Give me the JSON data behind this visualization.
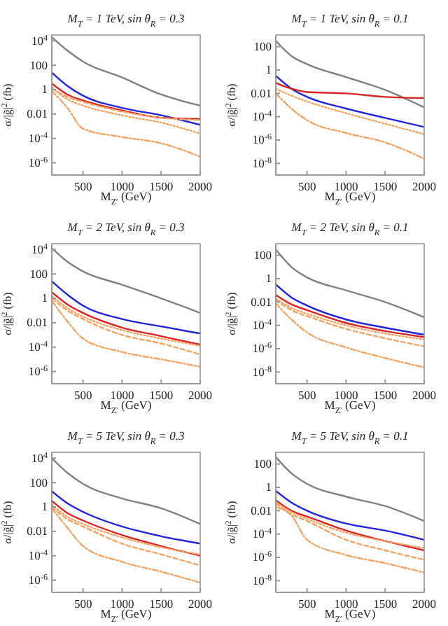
{
  "chart_data": [
    {
      "type": "line",
      "title": "M$_{T}$ = 1 TeV,  sin θ$_{R}$ = 0.3",
      "xlabel": "M$_{Z′}$ (GeV)",
      "ylabel": "σ/|g̃|$^{2}$ (fb)",
      "log": "y",
      "grid": false,
      "line_style": "solid",
      "x": [
        100,
        300,
        500,
        1000,
        1500,
        2000
      ],
      "xlim": [
        100,
        2000
      ],
      "xticks": [
        500,
        1000,
        1500,
        2000
      ],
      "ylim": [
        1e-07,
        30000
      ],
      "yticks": [
        {
          "value": 10000,
          "label": "10$^{4}$"
        },
        100,
        1,
        0.01,
        {
          "value": 0.0001,
          "label": "10$^{-4}$"
        },
        {
          "value": 1e-06,
          "label": "10$^{-6}$"
        }
      ],
      "series": [
        {
          "color": "#808080",
          "values": [
            20000,
            1600,
            200,
            10,
            0.4,
            0.05
          ]
        },
        {
          "color": "#2222dd",
          "values": [
            25,
            2,
            0.32,
            0.032,
            0.0079,
            0.0013
          ]
        },
        {
          "color": "#dd2222",
          "values": [
            3.2,
            0.4,
            0.13,
            0.02,
            0.005,
            0.004
          ]
        },
        {
          "color": "#f4a460",
          "line_style": "dotted",
          "values": [
            1.6,
            0.16,
            0.05,
            0.0079,
            0.002,
            0.00025
          ]
        },
        {
          "color": "#f4a460",
          "line_style": "dashed",
          "values": [
            1.3,
            0.25,
            0.1,
            0.016,
            0.005,
            0.0032
          ]
        },
        {
          "color": "#f4a460",
          "line_style": "dashdot",
          "values": [
            0.8,
            0.032,
            0.00063,
            0.00013,
            4e-05,
            3.2e-06
          ]
        }
      ]
    },
    {
      "type": "line",
      "title": "M$_{T}$ = 1 TeV,  sin θ$_{R}$ = 0.1",
      "xlabel": "M$_{Z′}$ (GeV)",
      "ylabel": "σ/|g̃|$^{2}$ (fb)",
      "log": "y",
      "grid": false,
      "line_style": "solid",
      "x": [
        100,
        300,
        500,
        1000,
        1500,
        2000
      ],
      "xlim": [
        100,
        2000
      ],
      "xticks": [
        500,
        1000,
        1500,
        2000
      ],
      "ylim": [
        1e-09,
        1000
      ],
      "yticks": [
        100,
        1,
        0.01,
        {
          "value": 0.0001,
          "label": "10$^{-4}$"
        },
        {
          "value": 1e-06,
          "label": "10$^{-6}$"
        },
        {
          "value": 1e-08,
          "label": "10$^{-8}$"
        }
      ],
      "series": [
        {
          "color": "#808080",
          "values": [
            316,
            16,
            3.2,
            0.25,
            0.02,
            0.00063
          ]
        },
        {
          "color": "#2222dd",
          "values": [
            0.32,
            0.025,
            0.005,
            0.0005,
            7.9e-05,
            1.3e-05
          ]
        },
        {
          "color": "#dd2222",
          "values": [
            0.079,
            0.025,
            0.013,
            0.01,
            0.005,
            0.004
          ]
        },
        {
          "color": "#f4a460",
          "line_style": "dotted",
          "values": [
            0.025,
            0.0063,
            0.002,
            0.0002,
            2.5e-05,
            3.2e-06
          ]
        },
        {
          "color": "#f4a460",
          "line_style": "dashdot",
          "values": [
            0.01,
            0.0005,
            5e-05,
            4e-06,
            6.3e-07,
            2.5e-08
          ]
        }
      ]
    },
    {
      "type": "line",
      "title": "M$_{T}$ = 2 TeV,  sin θ$_{R}$ = 0.3",
      "xlabel": "M$_{Z′}$ (GeV)",
      "ylabel": "σ/|g̃|$^{2}$ (fb)",
      "log": "y",
      "grid": false,
      "line_style": "solid",
      "x": [
        100,
        300,
        500,
        1000,
        1500,
        2000
      ],
      "xlim": [
        100,
        2000
      ],
      "xticks": [
        500,
        1000,
        1500,
        2000
      ],
      "ylim": [
        1e-07,
        30000
      ],
      "yticks": [
        {
          "value": 10000,
          "label": "10$^{4}$"
        },
        100,
        1,
        0.01,
        {
          "value": 0.0001,
          "label": "10$^{-4}$"
        },
        {
          "value": 1e-06,
          "label": "10$^{-6}$"
        }
      ],
      "series": [
        {
          "color": "#808080",
          "values": [
            13000,
            1000,
            160,
            13,
            1,
            0.063
          ]
        },
        {
          "color": "#2222dd",
          "values": [
            25,
            2,
            0.25,
            0.02,
            0.005,
            0.0013
          ]
        },
        {
          "color": "#dd2222",
          "values": [
            3.2,
            0.32,
            0.063,
            0.004,
            0.00079,
            0.00016
          ]
        },
        {
          "color": "#f4a460",
          "line_style": "dotted",
          "values": [
            1.6,
            0.16,
            0.032,
            0.0025,
            0.0005,
            0.00013
          ]
        },
        {
          "color": "#f4a460",
          "line_style": "dashed",
          "values": [
            1,
            0.1,
            0.02,
            0.001,
            0.0002,
            2.5e-05
          ]
        },
        {
          "color": "#f4a460",
          "line_style": "dashdot",
          "values": [
            0.63,
            0.013,
            0.0005,
            4e-05,
            1e-05,
            2.5e-06
          ]
        }
      ]
    },
    {
      "type": "line",
      "title": "M$_{T}$ = 2 TeV,  sin θ$_{R}$ = 0.1",
      "xlabel": "M$_{Z′}$ (GeV)",
      "ylabel": "σ/|g̃|$^{2}$ (fb)",
      "log": "y",
      "grid": false,
      "line_style": "solid",
      "x": [
        100,
        300,
        500,
        1000,
        1500,
        2000
      ],
      "xlim": [
        100,
        2000
      ],
      "xticks": [
        500,
        1000,
        1500,
        2000
      ],
      "ylim": [
        1e-09,
        1000
      ],
      "yticks": [
        100,
        1,
        0.01,
        {
          "value": 0.0001,
          "label": "10$^{-4}$"
        },
        {
          "value": 1e-06,
          "label": "10$^{-6}$"
        },
        {
          "value": 1e-08,
          "label": "10$^{-8}$"
        }
      ],
      "series": [
        {
          "color": "#808080",
          "values": [
            316,
            10,
            1.3,
            0.1,
            0.01,
            0.0005
          ]
        },
        {
          "color": "#2222dd",
          "values": [
            0.32,
            0.025,
            0.005,
            0.00032,
            6.3e-05,
            1.6e-05
          ]
        },
        {
          "color": "#dd2222",
          "values": [
            0.04,
            0.0063,
            0.002,
            0.00016,
            3.2e-05,
            1e-05
          ]
        },
        {
          "color": "#f4a460",
          "line_style": "dotted",
          "values": [
            0.02,
            0.0032,
            0.001,
            0.0001,
            2e-05,
            6.3e-06
          ]
        },
        {
          "color": "#f4a460",
          "line_style": "dashed",
          "values": [
            0.016,
            0.002,
            0.00063,
            5e-05,
            7.9e-06,
            1.6e-06
          ]
        },
        {
          "color": "#f4a460",
          "line_style": "dashdot",
          "values": [
            0.0079,
            0.00032,
            2.5e-05,
            1.3e-06,
            1.6e-07,
            2.5e-08
          ]
        }
      ]
    },
    {
      "type": "line",
      "title": "M$_{T}$ = 5 TeV,  sin θ$_{R}$ = 0.3",
      "xlabel": "M$_{Z′}$ (GeV)",
      "ylabel": "σ/|g̃|$^{2}$ (fb)",
      "log": "y",
      "grid": false,
      "line_style": "solid",
      "x": [
        100,
        300,
        500,
        1000,
        1500,
        2000
      ],
      "xlim": [
        100,
        2000
      ],
      "xticks": [
        500,
        1000,
        1500,
        2000
      ],
      "ylim": [
        1e-07,
        30000
      ],
      "yticks": [
        {
          "value": 10000,
          "label": "10$^{4}$"
        },
        100,
        1,
        0.01,
        {
          "value": 0.0001,
          "label": "10$^{-4}$"
        },
        {
          "value": 1e-06,
          "label": "10$^{-6}$"
        }
      ],
      "series": [
        {
          "color": "#808080",
          "values": [
            10000,
            630,
            79,
            5,
            0.79,
            0.04
          ]
        },
        {
          "color": "#2222dd",
          "values": [
            20,
            2,
            0.4,
            0.025,
            0.004,
            0.001
          ]
        },
        {
          "color": "#dd2222",
          "values": [
            3.2,
            0.32,
            0.079,
            0.005,
            0.00063,
            0.0001
          ]
        },
        {
          "color": "#f4a460",
          "line_style": "dotted",
          "values": [
            1.6,
            0.16,
            0.04,
            0.0032,
            0.0005,
            0.00013
          ]
        },
        {
          "color": "#f4a460",
          "line_style": "dashed",
          "values": [
            1,
            0.1,
            0.025,
            0.001,
            0.00013,
            1.6e-05
          ]
        },
        {
          "color": "#f4a460",
          "line_style": "dashdot",
          "values": [
            0.79,
            0.02,
            0.00063,
            3.2e-05,
            5e-06,
            6.3e-07
          ]
        }
      ]
    },
    {
      "type": "line",
      "title": "M$_{T}$ = 5 TeV,  sin θ$_{R}$ = 0.1",
      "xlabel": "M$_{Z′}$ (GeV)",
      "ylabel": "σ/|g̃|$^{2}$ (fb)",
      "log": "y",
      "grid": false,
      "line_style": "solid",
      "x": [
        100,
        300,
        500,
        1000,
        1500,
        2000
      ],
      "xlim": [
        100,
        2000
      ],
      "xticks": [
        500,
        1000,
        1500,
        2000
      ],
      "ylim": [
        1e-09,
        1000
      ],
      "yticks": [
        100,
        1,
        0.01,
        {
          "value": 0.0001,
          "label": "10$^{-4}$"
        },
        {
          "value": 1e-06,
          "label": "10$^{-6}$"
        },
        {
          "value": 1e-08,
          "label": "10$^{-8}$"
        }
      ],
      "series": [
        {
          "color": "#808080",
          "values": [
            400,
            16,
            2,
            0.16,
            0.025,
            0.0013
          ]
        },
        {
          "color": "#2222dd",
          "values": [
            0.5,
            0.05,
            0.01,
            0.00079,
            0.0002,
            3.2e-05
          ]
        },
        {
          "color": "#dd2222",
          "values": [
            0.079,
            0.01,
            0.0032,
            0.0002,
            2.5e-05,
            4e-06
          ]
        },
        {
          "color": "#f4a460",
          "line_style": "dotted",
          "values": [
            0.05,
            0.0079,
            0.002,
            0.00013,
            2.5e-05,
            6.3e-06
          ]
        },
        {
          "color": "#f4a460",
          "line_style": "dashed",
          "values": [
            0.04,
            0.005,
            0.0013,
            3.2e-05,
            4e-06,
            6.3e-07
          ]
        },
        {
          "color": "#f4a460",
          "line_style": "dashdot",
          "values": [
            0.02,
            0.004,
            3.2e-05,
            1.6e-06,
            3.2e-07,
            5e-08
          ]
        }
      ]
    }
  ]
}
